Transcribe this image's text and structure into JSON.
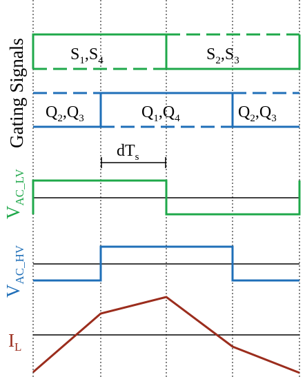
{
  "gating_title": "Gating Signals",
  "colors": {
    "green": "#1fa84a",
    "blue": "#1f6fb8",
    "brown": "#9b2d1d",
    "black": "#000000"
  },
  "labels": {
    "s14": {
      "base1": "S",
      "sub1": "1",
      "mid": ",S",
      "sub2": "4"
    },
    "s23": {
      "base1": "S",
      "sub1": "2",
      "mid": ",S",
      "sub2": "3"
    },
    "q23_left": {
      "base1": "Q",
      "sub1": "2",
      "mid": ",Q",
      "sub2": "3"
    },
    "q14": {
      "base1": "Q",
      "sub1": "1",
      "mid": ",Q",
      "sub2": "4"
    },
    "q23_right": {
      "base1": "Q",
      "sub1": "2",
      "mid": ",Q",
      "sub2": "3"
    },
    "dts": {
      "base": "dT",
      "sub": "s"
    },
    "vac_lv": {
      "base": "V",
      "sub": "AC_LV"
    },
    "vac_hv": {
      "base": "V",
      "sub": "AC_HV"
    },
    "il": {
      "base": "I",
      "sub": "L"
    }
  }
}
